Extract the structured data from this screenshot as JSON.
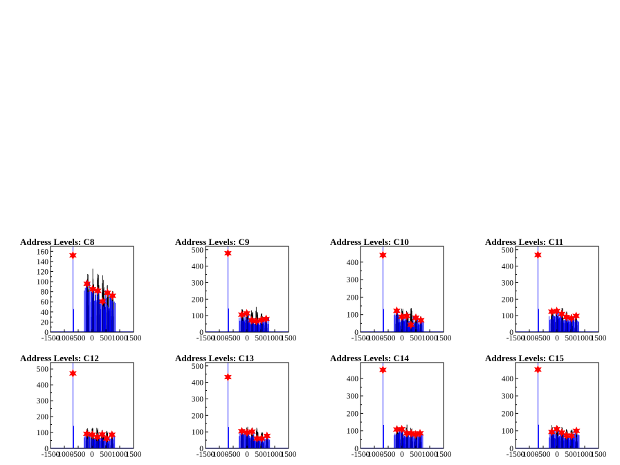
{
  "chart_data": [
    {
      "type": "histogram",
      "title": "Address Levels: C8",
      "xlim": [
        -1500,
        1500
      ],
      "ylim": [
        0,
        170
      ],
      "yticks": [
        0,
        20,
        40,
        60,
        80,
        100,
        120,
        140,
        160
      ],
      "xticks": [
        -1500,
        -1000,
        -500,
        0,
        500,
        1000,
        1500
      ],
      "xtick_labels": [
        "-1500",
        "-1000",
        "-500",
        "0",
        "500",
        "1000",
        "1500"
      ],
      "peaks": [
        {
          "x": -690,
          "y": 152
        },
        {
          "x": -180,
          "y": 96
        },
        {
          "x": 20,
          "y": 85
        },
        {
          "x": 210,
          "y": 82
        },
        {
          "x": 380,
          "y": 61
        },
        {
          "x": 560,
          "y": 78
        },
        {
          "x": 740,
          "y": 72
        }
      ],
      "black_spans": [
        {
          "x0": -210,
          "x1": -110,
          "h": 118
        },
        {
          "x0": -20,
          "x1": 80,
          "h": 127
        },
        {
          "x0": 170,
          "x1": 270,
          "h": 119
        },
        {
          "x0": 350,
          "x1": 450,
          "h": 128
        },
        {
          "x0": 520,
          "x1": 610,
          "h": 95
        },
        {
          "x0": 700,
          "x1": 780,
          "h": 84
        }
      ]
    },
    {
      "type": "histogram",
      "title": "Address Levels: C9",
      "xlim": [
        -1500,
        1500
      ],
      "ylim": [
        0,
        520
      ],
      "yticks": [
        0,
        100,
        200,
        300,
        400,
        500
      ],
      "xticks": [
        -1500,
        -1000,
        -500,
        0,
        500,
        1000,
        1500
      ],
      "xtick_labels": [
        "-1500",
        "-1000",
        "-500",
        "0",
        "500",
        "1000",
        "1500"
      ],
      "peaks": [
        {
          "x": -690,
          "y": 478
        },
        {
          "x": -190,
          "y": 106
        },
        {
          "x": -10,
          "y": 114
        },
        {
          "x": 170,
          "y": 72
        },
        {
          "x": 340,
          "y": 66
        },
        {
          "x": 520,
          "y": 74
        },
        {
          "x": 690,
          "y": 80
        }
      ],
      "black_spans": [
        {
          "x0": -220,
          "x1": -130,
          "h": 140
        },
        {
          "x0": -50,
          "x1": 50,
          "h": 135
        },
        {
          "x0": 130,
          "x1": 230,
          "h": 145
        },
        {
          "x0": 300,
          "x1": 400,
          "h": 160
        },
        {
          "x0": 480,
          "x1": 570,
          "h": 115
        },
        {
          "x0": 650,
          "x1": 730,
          "h": 95
        }
      ]
    },
    {
      "type": "histogram",
      "title": "Address Levels: C10",
      "xlim": [
        -1500,
        1500
      ],
      "ylim": [
        0,
        490
      ],
      "yticks": [
        0,
        100,
        200,
        300,
        400
      ],
      "xticks": [
        -1500,
        -1000,
        -500,
        0,
        500,
        1000,
        1500
      ],
      "xtick_labels": [
        "-1500",
        "-1000",
        "-500",
        "0",
        "500",
        "1000",
        "1500"
      ],
      "peaks": [
        {
          "x": -690,
          "y": 440
        },
        {
          "x": -190,
          "y": 122
        },
        {
          "x": -10,
          "y": 88
        },
        {
          "x": 170,
          "y": 92
        },
        {
          "x": 320,
          "y": 42
        },
        {
          "x": 500,
          "y": 82
        },
        {
          "x": 680,
          "y": 68
        }
      ],
      "black_spans": [
        {
          "x0": -230,
          "x1": -130,
          "h": 135
        },
        {
          "x0": -50,
          "x1": 50,
          "h": 140
        },
        {
          "x0": 130,
          "x1": 230,
          "h": 140
        },
        {
          "x0": 290,
          "x1": 380,
          "h": 140
        },
        {
          "x0": 460,
          "x1": 550,
          "h": 100
        },
        {
          "x0": 640,
          "x1": 720,
          "h": 90
        }
      ]
    },
    {
      "type": "histogram",
      "title": "Address Levels: C11",
      "xlim": [
        -1500,
        1500
      ],
      "ylim": [
        0,
        520
      ],
      "yticks": [
        0,
        100,
        200,
        300,
        400,
        500
      ],
      "xticks": [
        -1500,
        -1000,
        -500,
        0,
        500,
        1000,
        1500
      ],
      "xtick_labels": [
        "-1500",
        "-1000",
        "-500",
        "0",
        "500",
        "1000",
        "1500"
      ],
      "peaks": [
        {
          "x": -690,
          "y": 468
        },
        {
          "x": -190,
          "y": 124
        },
        {
          "x": -10,
          "y": 128
        },
        {
          "x": 170,
          "y": 110
        },
        {
          "x": 340,
          "y": 92
        },
        {
          "x": 520,
          "y": 84
        },
        {
          "x": 690,
          "y": 98
        }
      ],
      "black_spans": [
        {
          "x0": -220,
          "x1": -130,
          "h": 145
        },
        {
          "x0": -50,
          "x1": 50,
          "h": 150
        },
        {
          "x0": 130,
          "x1": 230,
          "h": 150
        },
        {
          "x0": 300,
          "x1": 400,
          "h": 130
        },
        {
          "x0": 480,
          "x1": 570,
          "h": 110
        },
        {
          "x0": 650,
          "x1": 730,
          "h": 110
        }
      ]
    },
    {
      "type": "histogram",
      "title": "Address Levels: C12",
      "xlim": [
        -1500,
        1500
      ],
      "ylim": [
        0,
        540
      ],
      "yticks": [
        0,
        100,
        200,
        300,
        400,
        500
      ],
      "xticks": [
        -1500,
        -1000,
        -500,
        0,
        500,
        1000,
        1500
      ],
      "xtick_labels": [
        "-1500",
        "-1000",
        "-500",
        "0",
        "500",
        "1000",
        "1500"
      ],
      "peaks": [
        {
          "x": -690,
          "y": 472
        },
        {
          "x": -190,
          "y": 92
        },
        {
          "x": 10,
          "y": 86
        },
        {
          "x": 190,
          "y": 72
        },
        {
          "x": 370,
          "y": 88
        },
        {
          "x": 530,
          "y": 62
        },
        {
          "x": 720,
          "y": 86
        }
      ],
      "black_spans": [
        {
          "x0": -220,
          "x1": -130,
          "h": 130
        },
        {
          "x0": -30,
          "x1": 60,
          "h": 130
        },
        {
          "x0": 150,
          "x1": 240,
          "h": 140
        },
        {
          "x0": 330,
          "x1": 420,
          "h": 125
        },
        {
          "x0": 490,
          "x1": 580,
          "h": 110
        },
        {
          "x0": 680,
          "x1": 760,
          "h": 100
        }
      ]
    },
    {
      "type": "histogram",
      "title": "Address Levels: C13",
      "xlim": [
        -1500,
        1500
      ],
      "ylim": [
        0,
        520
      ],
      "yticks": [
        0,
        100,
        200,
        300,
        400,
        500
      ],
      "xticks": [
        -1500,
        -1000,
        -500,
        0,
        500,
        1000,
        1500
      ],
      "xtick_labels": [
        "-1500",
        "-1000",
        "-500",
        "0",
        "500",
        "1000",
        "1500"
      ],
      "peaks": [
        {
          "x": -690,
          "y": 432
        },
        {
          "x": -190,
          "y": 104
        },
        {
          "x": 0,
          "y": 96
        },
        {
          "x": 180,
          "y": 102
        },
        {
          "x": 360,
          "y": 60
        },
        {
          "x": 530,
          "y": 60
        },
        {
          "x": 720,
          "y": 76
        }
      ],
      "black_spans": [
        {
          "x0": -220,
          "x1": -130,
          "h": 120
        },
        {
          "x0": -40,
          "x1": 50,
          "h": 135
        },
        {
          "x0": 140,
          "x1": 230,
          "h": 130
        },
        {
          "x0": 320,
          "x1": 410,
          "h": 130
        },
        {
          "x0": 490,
          "x1": 580,
          "h": 100
        },
        {
          "x0": 680,
          "x1": 760,
          "h": 90
        }
      ]
    },
    {
      "type": "histogram",
      "title": "Address Levels: C14",
      "xlim": [
        -1500,
        1500
      ],
      "ylim": [
        0,
        490
      ],
      "yticks": [
        0,
        100,
        200,
        300,
        400
      ],
      "xticks": [
        -1500,
        -1000,
        -500,
        0,
        500,
        1000,
        1500
      ],
      "xtick_labels": [
        "-1500",
        "-1000",
        "-500",
        "0",
        "500",
        "1000",
        "1500"
      ],
      "peaks": [
        {
          "x": -690,
          "y": 448
        },
        {
          "x": -190,
          "y": 108
        },
        {
          "x": -10,
          "y": 110
        },
        {
          "x": 170,
          "y": 86
        },
        {
          "x": 330,
          "y": 86
        },
        {
          "x": 490,
          "y": 80
        },
        {
          "x": 650,
          "y": 86
        }
      ],
      "black_spans": [
        {
          "x0": -220,
          "x1": -130,
          "h": 130
        },
        {
          "x0": -50,
          "x1": 40,
          "h": 125
        },
        {
          "x0": 130,
          "x1": 220,
          "h": 140
        },
        {
          "x0": 290,
          "x1": 380,
          "h": 120
        },
        {
          "x0": 450,
          "x1": 540,
          "h": 100
        },
        {
          "x0": 610,
          "x1": 690,
          "h": 95
        }
      ]
    },
    {
      "type": "histogram",
      "title": "Address Levels: C15",
      "xlim": [
        -1500,
        1500
      ],
      "ylim": [
        0,
        490
      ],
      "yticks": [
        0,
        100,
        200,
        300,
        400
      ],
      "xticks": [
        -1500,
        -1000,
        -500,
        0,
        500,
        1000,
        1500
      ],
      "xtick_labels": [
        "-1500",
        "-1000",
        "-500",
        "0",
        "500",
        "1000",
        "1500"
      ],
      "peaks": [
        {
          "x": -690,
          "y": 450
        },
        {
          "x": -190,
          "y": 94
        },
        {
          "x": -10,
          "y": 110
        },
        {
          "x": 170,
          "y": 90
        },
        {
          "x": 340,
          "y": 74
        },
        {
          "x": 520,
          "y": 72
        },
        {
          "x": 700,
          "y": 100
        }
      ],
      "black_spans": [
        {
          "x0": -220,
          "x1": -130,
          "h": 135
        },
        {
          "x0": -50,
          "x1": 50,
          "h": 130
        },
        {
          "x0": 130,
          "x1": 230,
          "h": 130
        },
        {
          "x0": 300,
          "x1": 400,
          "h": 125
        },
        {
          "x0": 480,
          "x1": 570,
          "h": 110
        },
        {
          "x0": 660,
          "x1": 740,
          "h": 110
        }
      ]
    }
  ],
  "colors": {
    "signal": "#0000ff",
    "trace": "#000000",
    "marker": "#ff0000",
    "axis": "#000000"
  }
}
